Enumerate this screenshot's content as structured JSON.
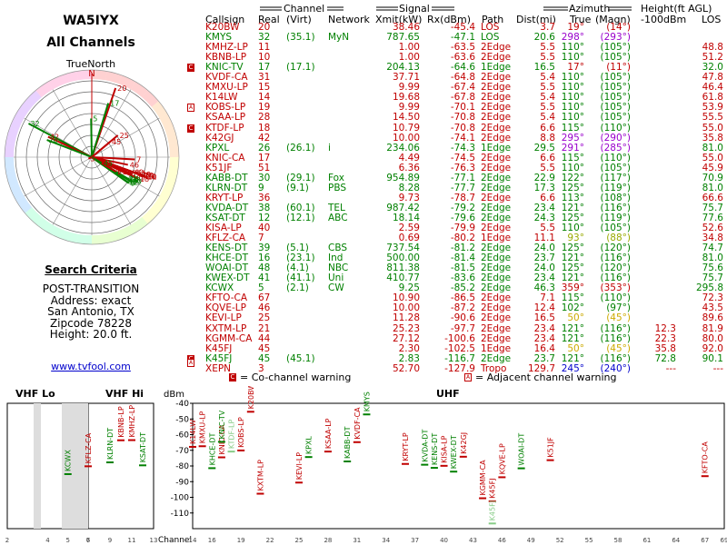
{
  "left": {
    "callsign": "WA5IYX",
    "subtitle": "All Channels",
    "compass_label": "TrueNorth",
    "compass_n": "N",
    "search_title": "Search Criteria",
    "criteria": [
      "POST-TRANSITION",
      "Address: exact",
      "San Antonio, TX",
      "Zipcode 78228",
      "Height: 20.0 ft."
    ],
    "link": "www.tvfool.com"
  },
  "table": {
    "groups": {
      "channel": "Channel",
      "signal": "Signal",
      "azimuth": "Azimuth",
      "height": "Height(ft AGL)"
    },
    "headers": {
      "callsign": "Callsign",
      "real": "Real",
      "virt": "(Virt)",
      "network": "Network",
      "xmit": "Xmit(kW)",
      "rx": "Rx(dBm)",
      "path": "Path",
      "dist": "Dist(mi)",
      "true": "True",
      "magn": "(Magn)",
      "minus100": "-100dBm",
      "los": "LOS"
    },
    "rows": [
      {
        "cs": "K20BW",
        "real": "20",
        "virt": "",
        "net": "",
        "xmit": "38.46",
        "rx": "-45.4",
        "path": "LOS",
        "dist": "3.7",
        "tru": "19°",
        "mag": "(14°)",
        "h100": "",
        "los": "",
        "color": "#c00000",
        "azc": "#c00000",
        "flag": ""
      },
      {
        "cs": "KMYS",
        "real": "32",
        "virt": "(35.1)",
        "net": "MyN",
        "xmit": "787.65",
        "rx": "-47.1",
        "path": "LOS",
        "dist": "20.6",
        "tru": "298°",
        "mag": "(293°)",
        "h100": "",
        "los": "",
        "color": "#008000",
        "azc": "#9900cc",
        "flag": ""
      },
      {
        "cs": "KMHZ-LP",
        "real": "11",
        "virt": "",
        "net": "",
        "xmit": "1.00",
        "rx": "-63.5",
        "path": "2Edge",
        "dist": "5.5",
        "tru": "110°",
        "mag": "(105°)",
        "h100": "",
        "los": "48.8",
        "color": "#c00000",
        "azc": "#008000",
        "flag": ""
      },
      {
        "cs": "KBNB-LP",
        "real": "10",
        "virt": "",
        "net": "",
        "xmit": "1.00",
        "rx": "-63.6",
        "path": "2Edge",
        "dist": "5.5",
        "tru": "110°",
        "mag": "(105°)",
        "h100": "",
        "los": "51.2",
        "color": "#c00000",
        "azc": "#008000",
        "flag": ""
      },
      {
        "cs": "KNIC-TV",
        "real": "17",
        "virt": "(17.1)",
        "net": "",
        "xmit": "204.13",
        "rx": "-64.6",
        "path": "1Edge",
        "dist": "16.5",
        "tru": "17°",
        "mag": "(11°)",
        "h100": "",
        "los": "32.0",
        "color": "#008000",
        "azc": "#c00000",
        "flag": "C"
      },
      {
        "cs": "KVDF-CA",
        "real": "31",
        "virt": "",
        "net": "",
        "xmit": "37.71",
        "rx": "-64.8",
        "path": "2Edge",
        "dist": "5.4",
        "tru": "110°",
        "mag": "(105°)",
        "h100": "",
        "los": "47.8",
        "color": "#c00000",
        "azc": "#008000",
        "flag": ""
      },
      {
        "cs": "KMXU-LP",
        "real": "15",
        "virt": "",
        "net": "",
        "xmit": "9.99",
        "rx": "-67.4",
        "path": "2Edge",
        "dist": "5.5",
        "tru": "110°",
        "mag": "(105°)",
        "h100": "",
        "los": "46.4",
        "color": "#c00000",
        "azc": "#008000",
        "flag": ""
      },
      {
        "cs": "K14LW",
        "real": "14",
        "virt": "",
        "net": "",
        "xmit": "19.68",
        "rx": "-67.8",
        "path": "2Edge",
        "dist": "5.4",
        "tru": "110°",
        "mag": "(105°)",
        "h100": "",
        "los": "61.8",
        "color": "#c00000",
        "azc": "#008000",
        "flag": ""
      },
      {
        "cs": "KOBS-LP",
        "real": "19",
        "virt": "",
        "net": "",
        "xmit": "9.99",
        "rx": "-70.1",
        "path": "2Edge",
        "dist": "5.5",
        "tru": "110°",
        "mag": "(105°)",
        "h100": "",
        "los": "53.9",
        "color": "#c00000",
        "azc": "#008000",
        "flag": "A"
      },
      {
        "cs": "KSAA-LP",
        "real": "28",
        "virt": "",
        "net": "",
        "xmit": "14.50",
        "rx": "-70.8",
        "path": "2Edge",
        "dist": "5.4",
        "tru": "110°",
        "mag": "(105°)",
        "h100": "",
        "los": "55.5",
        "color": "#c00000",
        "azc": "#008000",
        "flag": ""
      },
      {
        "cs": "KTDF-LP",
        "real": "18",
        "virt": "",
        "net": "",
        "xmit": "10.79",
        "rx": "-70.8",
        "path": "2Edge",
        "dist": "6.6",
        "tru": "115°",
        "mag": "(110°)",
        "h100": "",
        "los": "55.0",
        "color": "#c00000",
        "azc": "#008000",
        "flag": "C"
      },
      {
        "cs": "K42GJ",
        "real": "42",
        "virt": "",
        "net": "",
        "xmit": "10.00",
        "rx": "-74.1",
        "path": "2Edge",
        "dist": "8.8",
        "tru": "295°",
        "mag": "(290°)",
        "h100": "",
        "los": "35.8",
        "color": "#c00000",
        "azc": "#9900cc",
        "flag": ""
      },
      {
        "cs": "KPXL",
        "real": "26",
        "virt": "(26.1)",
        "net": "i",
        "xmit": "234.06",
        "rx": "-74.3",
        "path": "1Edge",
        "dist": "29.5",
        "tru": "291°",
        "mag": "(285°)",
        "h100": "",
        "los": "81.0",
        "color": "#008000",
        "azc": "#9900cc",
        "flag": ""
      },
      {
        "cs": "KNIC-CA",
        "real": "17",
        "virt": "",
        "net": "",
        "xmit": "4.49",
        "rx": "-74.5",
        "path": "2Edge",
        "dist": "6.6",
        "tru": "115°",
        "mag": "(110°)",
        "h100": "",
        "los": "55.0",
        "color": "#c00000",
        "azc": "#008000",
        "flag": ""
      },
      {
        "cs": "K51JF",
        "real": "51",
        "virt": "",
        "net": "",
        "xmit": "6.36",
        "rx": "-76.3",
        "path": "2Edge",
        "dist": "5.5",
        "tru": "110°",
        "mag": "(105°)",
        "h100": "",
        "los": "45.9",
        "color": "#c00000",
        "azc": "#008000",
        "flag": ""
      },
      {
        "cs": "KABB-DT",
        "real": "30",
        "virt": "(29.1)",
        "net": "Fox",
        "xmit": "954.89",
        "rx": "-77.1",
        "path": "2Edge",
        "dist": "22.9",
        "tru": "122°",
        "mag": "(117°)",
        "h100": "",
        "los": "70.9",
        "color": "#008000",
        "azc": "#008000",
        "flag": ""
      },
      {
        "cs": "KLRN-DT",
        "real": "9",
        "virt": "(9.1)",
        "net": "PBS",
        "xmit": "8.28",
        "rx": "-77.7",
        "path": "2Edge",
        "dist": "17.3",
        "tru": "125°",
        "mag": "(119°)",
        "h100": "",
        "los": "81.0",
        "color": "#008000",
        "azc": "#008000",
        "flag": ""
      },
      {
        "cs": "KRYT-LP",
        "real": "36",
        "virt": "",
        "net": "",
        "xmit": "9.73",
        "rx": "-78.7",
        "path": "2Edge",
        "dist": "6.6",
        "tru": "113°",
        "mag": "(108°)",
        "h100": "",
        "los": "66.6",
        "color": "#c00000",
        "azc": "#008000",
        "flag": ""
      },
      {
        "cs": "KVDA-DT",
        "real": "38",
        "virt": "(60.1)",
        "net": "TEL",
        "xmit": "987.42",
        "rx": "-79.2",
        "path": "2Edge",
        "dist": "23.4",
        "tru": "121°",
        "mag": "(116°)",
        "h100": "",
        "los": "75.7",
        "color": "#008000",
        "azc": "#008000",
        "flag": ""
      },
      {
        "cs": "KSAT-DT",
        "real": "12",
        "virt": "(12.1)",
        "net": "ABC",
        "xmit": "18.14",
        "rx": "-79.6",
        "path": "2Edge",
        "dist": "24.3",
        "tru": "125°",
        "mag": "(119°)",
        "h100": "",
        "los": "77.6",
        "color": "#008000",
        "azc": "#008000",
        "flag": ""
      },
      {
        "cs": "KISA-LP",
        "real": "40",
        "virt": "",
        "net": "",
        "xmit": "2.59",
        "rx": "-79.9",
        "path": "2Edge",
        "dist": "5.5",
        "tru": "110°",
        "mag": "(105°)",
        "h100": "",
        "los": "52.6",
        "color": "#c00000",
        "azc": "#008000",
        "flag": ""
      },
      {
        "cs": "KFLZ-CA",
        "real": "7",
        "virt": "",
        "net": "",
        "xmit": "0.69",
        "rx": "-80.2",
        "path": "1Edge",
        "dist": "11.1",
        "tru": "93°",
        "mag": "(88°)",
        "h100": "",
        "los": "34.8",
        "color": "#c00000",
        "azc": "#99aa00",
        "flag": ""
      },
      {
        "cs": "KENS-DT",
        "real": "39",
        "virt": "(5.1)",
        "net": "CBS",
        "xmit": "737.54",
        "rx": "-81.2",
        "path": "2Edge",
        "dist": "24.0",
        "tru": "125°",
        "mag": "(120°)",
        "h100": "",
        "los": "74.7",
        "color": "#008000",
        "azc": "#008000",
        "flag": ""
      },
      {
        "cs": "KHCE-DT",
        "real": "16",
        "virt": "(23.1)",
        "net": "Ind",
        "xmit": "500.00",
        "rx": "-81.4",
        "path": "2Edge",
        "dist": "23.7",
        "tru": "121°",
        "mag": "(116°)",
        "h100": "",
        "los": "81.0",
        "color": "#008000",
        "azc": "#008000",
        "flag": ""
      },
      {
        "cs": "WOAI-DT",
        "real": "48",
        "virt": "(4.1)",
        "net": "NBC",
        "xmit": "811.38",
        "rx": "-81.5",
        "path": "2Edge",
        "dist": "24.0",
        "tru": "125°",
        "mag": "(120°)",
        "h100": "",
        "los": "75.6",
        "color": "#008000",
        "azc": "#008000",
        "flag": ""
      },
      {
        "cs": "KWEX-DT",
        "real": "41",
        "virt": "(41.1)",
        "net": "Uni",
        "xmit": "410.77",
        "rx": "-83.6",
        "path": "2Edge",
        "dist": "23.4",
        "tru": "121°",
        "mag": "(116°)",
        "h100": "",
        "los": "75.7",
        "color": "#008000",
        "azc": "#008000",
        "flag": ""
      },
      {
        "cs": "KCWX",
        "real": "5",
        "virt": "(2.1)",
        "net": "CW",
        "xmit": "9.25",
        "rx": "-85.2",
        "path": "2Edge",
        "dist": "46.3",
        "tru": "359°",
        "mag": "(353°)",
        "h100": "",
        "los": "295.8",
        "color": "#008000",
        "azc": "#c00000",
        "flag": ""
      },
      {
        "cs": "KFTO-CA",
        "real": "67",
        "virt": "",
        "net": "",
        "xmit": "10.90",
        "rx": "-86.5",
        "path": "2Edge",
        "dist": "7.1",
        "tru": "115°",
        "mag": "(110°)",
        "h100": "",
        "los": "72.3",
        "color": "#c00000",
        "azc": "#008000",
        "flag": ""
      },
      {
        "cs": "KQVE-LP",
        "real": "46",
        "virt": "",
        "net": "",
        "xmit": "10.00",
        "rx": "-87.2",
        "path": "2Edge",
        "dist": "12.4",
        "tru": "102°",
        "mag": "(97°)",
        "h100": "",
        "los": "43.5",
        "color": "#c00000",
        "azc": "#008000",
        "flag": ""
      },
      {
        "cs": "KEVI-LP",
        "real": "25",
        "virt": "",
        "net": "",
        "xmit": "11.28",
        "rx": "-90.6",
        "path": "2Edge",
        "dist": "16.5",
        "tru": "50°",
        "mag": "(45°)",
        "h100": "",
        "los": "89.6",
        "color": "#c00000",
        "azc": "#ccaa00",
        "flag": ""
      },
      {
        "cs": "KXTM-LP",
        "real": "21",
        "virt": "",
        "net": "",
        "xmit": "25.23",
        "rx": "-97.7",
        "path": "2Edge",
        "dist": "23.4",
        "tru": "121°",
        "mag": "(116°)",
        "h100": "12.3",
        "los": "81.9",
        "color": "#c00000",
        "azc": "#008000",
        "flag": ""
      },
      {
        "cs": "KGMM-CA",
        "real": "44",
        "virt": "",
        "net": "",
        "xmit": "27.12",
        "rx": "-100.6",
        "path": "2Edge",
        "dist": "23.4",
        "tru": "121°",
        "mag": "(116°)",
        "h100": "22.3",
        "los": "80.0",
        "color": "#c00000",
        "azc": "#008000",
        "flag": ""
      },
      {
        "cs": "K45FJ",
        "real": "45",
        "virt": "",
        "net": "",
        "xmit": "2.30",
        "rx": "-102.5",
        "path": "1Edge",
        "dist": "16.4",
        "tru": "50°",
        "mag": "(45°)",
        "h100": "35.8",
        "los": "92.0",
        "color": "#c00000",
        "azc": "#ccaa00",
        "flag": ""
      },
      {
        "cs": "K45FJ",
        "real": "45",
        "virt": "(45.1)",
        "net": "",
        "xmit": "2.83",
        "rx": "-116.7",
        "path": "2Edge",
        "dist": "23.7",
        "tru": "121°",
        "mag": "(116°)",
        "h100": "72.8",
        "los": "90.1",
        "color": "#008000",
        "azc": "#008000",
        "flag": "CA"
      },
      {
        "cs": "XEPN",
        "real": "3",
        "virt": "",
        "net": "",
        "xmit": "52.70",
        "rx": "-127.9",
        "path": "Tropo",
        "dist": "129.7",
        "tru": "245°",
        "mag": "(240°)",
        "h100": "---",
        "los": "---",
        "color": "#c00000",
        "azc": "#0000cc",
        "flag": ""
      }
    ],
    "legend": {
      "co": "= Co-channel warning",
      "adj": "= Adjacent channel warning",
      "c_mark": "C",
      "a_mark": "A"
    }
  },
  "bottom": {
    "vhf_lo": "VHF Lo",
    "vhf_hi": "VHF Hi",
    "uhf": "UHF",
    "dbm_label": "dBm",
    "channel_label": "Channel",
    "dbm_ticks": [
      "-40",
      "-50",
      "-60",
      "-70",
      "-80",
      "-90",
      "-100",
      "-110"
    ],
    "vhf_ticks": [
      "2",
      "4",
      "5",
      "6",
      "7",
      "9",
      "11",
      "13"
    ],
    "uhf_ticks": [
      "14",
      "16",
      "19",
      "22",
      "25",
      "28",
      "31",
      "34",
      "37",
      "40",
      "43",
      "46",
      "49",
      "52",
      "55",
      "58",
      "61",
      "64",
      "67",
      "69"
    ],
    "stations": [
      {
        "cs": "KCWX",
        "ch": 5,
        "rx": -85.2,
        "color": "#008000"
      },
      {
        "cs": "KFLZ-CA",
        "ch": 7,
        "rx": -80.2,
        "color": "#c00000"
      },
      {
        "cs": "KLRN-DT",
        "ch": 9,
        "rx": -77.7,
        "color": "#008000"
      },
      {
        "cs": "KBNB-LP",
        "ch": 10,
        "rx": -63.6,
        "color": "#c00000"
      },
      {
        "cs": "KMHZ-LP",
        "ch": 11,
        "rx": -63.5,
        "color": "#c00000"
      },
      {
        "cs": "KSAT-DT",
        "ch": 12,
        "rx": -79.6,
        "color": "#008000"
      },
      {
        "cs": "K14LW",
        "ch": 14,
        "rx": -67.8,
        "color": "#c00000"
      },
      {
        "cs": "KMXU-LP",
        "ch": 15,
        "rx": -67.4,
        "color": "#c00000"
      },
      {
        "cs": "KHCE-DT",
        "ch": 16,
        "rx": -81.4,
        "color": "#008000"
      },
      {
        "cs": "KNIC-CA",
        "ch": 17,
        "rx": -74.5,
        "color": "#c00000"
      },
      {
        "cs": "KNIC-TV",
        "ch": 17,
        "rx": -64.6,
        "color": "#008000"
      },
      {
        "cs": "KTDF-LP",
        "ch": 18,
        "rx": -70.8,
        "color": "#88cc88"
      },
      {
        "cs": "KOBS-LP",
        "ch": 19,
        "rx": -70.1,
        "color": "#c00000"
      },
      {
        "cs": "K20BW",
        "ch": 20,
        "rx": -45.4,
        "color": "#c00000"
      },
      {
        "cs": "KXTM-LP",
        "ch": 21,
        "rx": -97.7,
        "color": "#c00000"
      },
      {
        "cs": "KEVI-LP",
        "ch": 25,
        "rx": -90.6,
        "color": "#c00000"
      },
      {
        "cs": "KPXL",
        "ch": 26,
        "rx": -74.3,
        "color": "#008000"
      },
      {
        "cs": "KSAA-LP",
        "ch": 28,
        "rx": -70.8,
        "color": "#c00000"
      },
      {
        "cs": "KABB-DT",
        "ch": 30,
        "rx": -77.1,
        "color": "#008000"
      },
      {
        "cs": "KVDF-CA",
        "ch": 31,
        "rx": -64.8,
        "color": "#c00000"
      },
      {
        "cs": "KMYS",
        "ch": 32,
        "rx": -47.1,
        "color": "#008000"
      },
      {
        "cs": "KRYT-LP",
        "ch": 36,
        "rx": -78.7,
        "color": "#c00000"
      },
      {
        "cs": "KVDA-DT",
        "ch": 38,
        "rx": -79.2,
        "color": "#008000"
      },
      {
        "cs": "KENS-DT",
        "ch": 39,
        "rx": -81.2,
        "color": "#008000"
      },
      {
        "cs": "KISA-LP",
        "ch": 40,
        "rx": -79.9,
        "color": "#c00000"
      },
      {
        "cs": "KWEX-DT",
        "ch": 41,
        "rx": -83.6,
        "color": "#008000"
      },
      {
        "cs": "K42GJ",
        "ch": 42,
        "rx": -74.1,
        "color": "#c00000"
      },
      {
        "cs": "KGMM-CA",
        "ch": 44,
        "rx": -100.6,
        "color": "#c00000"
      },
      {
        "cs": "K45FJ",
        "ch": 45,
        "rx": -102.5,
        "color": "#c00000"
      },
      {
        "cs": "K45FJ",
        "ch": 45,
        "rx": -116.7,
        "color": "#88cc88"
      },
      {
        "cs": "KQVE-LP",
        "ch": 46,
        "rx": -87.2,
        "color": "#c00000"
      },
      {
        "cs": "WOAI-DT",
        "ch": 48,
        "rx": -81.5,
        "color": "#008000"
      },
      {
        "cs": "K51JF",
        "ch": 51,
        "rx": -76.3,
        "color": "#c00000"
      },
      {
        "cs": "KFTO-CA",
        "ch": 67,
        "rx": -86.5,
        "color": "#c00000"
      }
    ]
  },
  "colors": {
    "co_channel": "#c00000",
    "analog": "#c00000",
    "digital": "#008000",
    "link": "#0000cc"
  }
}
